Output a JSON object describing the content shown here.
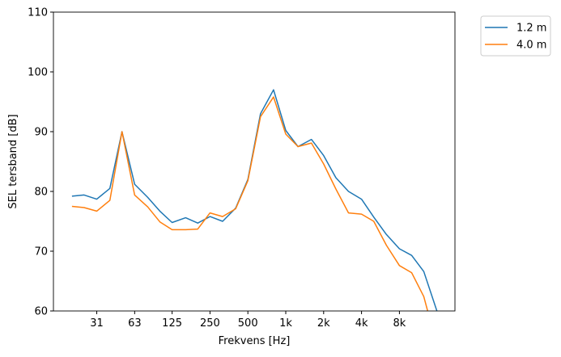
{
  "chart_data": {
    "type": "line",
    "title": "",
    "xlabel": "Frekvens [Hz]",
    "ylabel": "SEL tersband [dB]",
    "ylim": [
      60,
      110
    ],
    "yticks": [
      60,
      70,
      80,
      90,
      100,
      110
    ],
    "x_scale": "log (third-octave bands)",
    "x": [
      20,
      25,
      31.5,
      40,
      50,
      63,
      80,
      100,
      125,
      160,
      200,
      250,
      315,
      400,
      500,
      630,
      800,
      1000,
      1250,
      1600,
      2000,
      2500,
      3150,
      4000,
      5000,
      6300,
      8000,
      10000,
      12500,
      16000
    ],
    "xticks": [
      {
        "value": 31.5,
        "label": "31"
      },
      {
        "value": 63,
        "label": "63"
      },
      {
        "value": 125,
        "label": "125"
      },
      {
        "value": 250,
        "label": "250"
      },
      {
        "value": 500,
        "label": "500"
      },
      {
        "value": 1000,
        "label": "1k"
      },
      {
        "value": 2000,
        "label": "2k"
      },
      {
        "value": 4000,
        "label": "4k"
      },
      {
        "value": 8000,
        "label": "8k"
      }
    ],
    "grid": false,
    "legend_position": "outside top-right",
    "series": [
      {
        "name": "1.2 m",
        "color": "#1f77b4",
        "values": [
          79.2,
          79.4,
          78.7,
          80.5,
          90.0,
          81.2,
          79.0,
          76.7,
          74.8,
          75.6,
          74.7,
          75.8,
          75.0,
          77.2,
          82.0,
          93.0,
          97.0,
          90.2,
          87.5,
          88.7,
          86.0,
          82.3,
          80.0,
          78.7,
          75.7,
          72.8,
          70.4,
          69.3,
          66.6,
          59.8
        ]
      },
      {
        "name": "4.0 m",
        "color": "#ff7f0e",
        "values": [
          77.5,
          77.3,
          76.7,
          78.5,
          90.0,
          79.4,
          77.4,
          74.9,
          73.6,
          73.6,
          73.7,
          76.4,
          75.8,
          77.1,
          81.8,
          92.5,
          95.8,
          89.6,
          87.5,
          88.1,
          84.6,
          80.4,
          76.4,
          76.2,
          75.0,
          71.0,
          67.6,
          66.4,
          62.4,
          54.0
        ]
      }
    ]
  }
}
